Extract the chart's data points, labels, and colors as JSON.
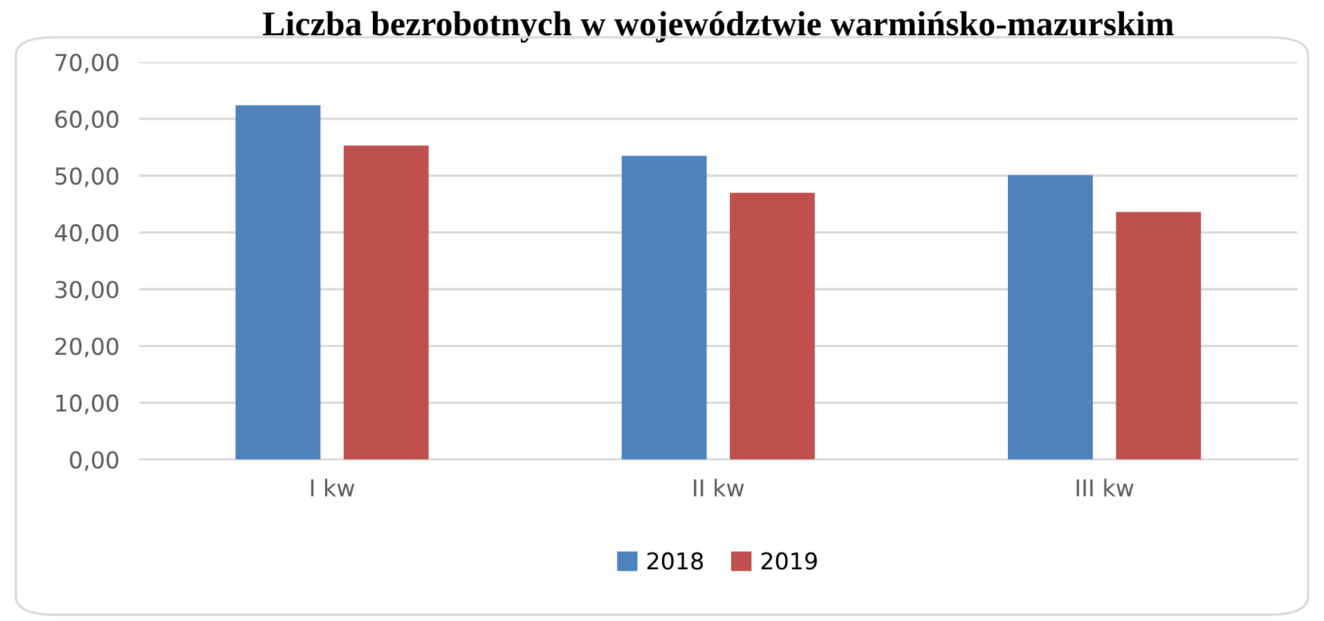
{
  "chart_data": {
    "type": "bar",
    "title": "Liczba bezrobotnych w województwie warmińsko-mazurskim",
    "categories": [
      "I kw",
      "II kw",
      "III kw"
    ],
    "series": [
      {
        "name": "2018",
        "color": "#4f81bd",
        "values": [
          62.4,
          53.5,
          50.1
        ]
      },
      {
        "name": "2019",
        "color": "#c0504d",
        "values": [
          55.3,
          47.0,
          43.6
        ]
      }
    ],
    "ylim": [
      0,
      70
    ],
    "yticks": [
      {
        "value": 0,
        "label": "0,00"
      },
      {
        "value": 10,
        "label": "10,00"
      },
      {
        "value": 20,
        "label": "20,00"
      },
      {
        "value": 30,
        "label": "30,00"
      },
      {
        "value": 40,
        "label": "40,00"
      },
      {
        "value": 50,
        "label": "50,00"
      },
      {
        "value": 60,
        "label": "60,00"
      },
      {
        "value": 70,
        "label": "70,00"
      }
    ],
    "grid": "y",
    "legend": "bottom"
  }
}
